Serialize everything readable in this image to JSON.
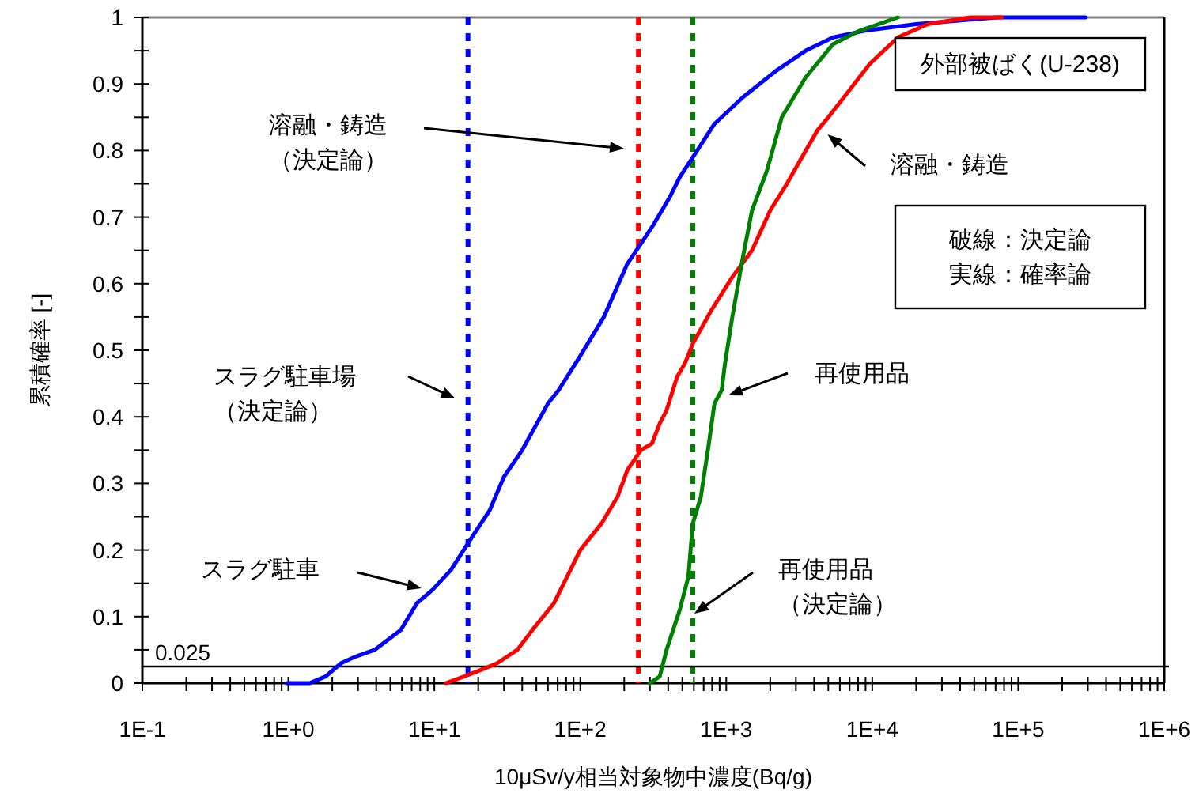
{
  "chart_data": {
    "type": "line",
    "xlabel": "10μSv/y相当対象物中濃度(Bq/g)",
    "ylabel": "累積確率 [-]",
    "log": "x",
    "line_style": "solid",
    "xlim": [
      0.1,
      1000000
    ],
    "ylim": [
      0,
      1
    ],
    "xticks": [
      {
        "value": 0.1,
        "label": "1E-1"
      },
      {
        "value": 0.2,
        "label": null
      },
      {
        "value": 0.3,
        "label": null
      },
      {
        "value": 0.4,
        "label": null
      },
      {
        "value": 0.5,
        "label": null
      },
      {
        "value": 0.6,
        "label": null
      },
      {
        "value": 0.7,
        "label": null
      },
      {
        "value": 0.8,
        "label": null
      },
      {
        "value": 0.9,
        "label": null
      },
      {
        "value": 1,
        "label": "1E+0"
      },
      {
        "value": 2,
        "label": null
      },
      {
        "value": 3,
        "label": null
      },
      {
        "value": 4,
        "label": null
      },
      {
        "value": 5,
        "label": null
      },
      {
        "value": 6,
        "label": null
      },
      {
        "value": 7,
        "label": null
      },
      {
        "value": 8,
        "label": null
      },
      {
        "value": 9,
        "label": null
      },
      {
        "value": 10,
        "label": "1E+1"
      },
      {
        "value": 20,
        "label": null
      },
      {
        "value": 30,
        "label": null
      },
      {
        "value": 40,
        "label": null
      },
      {
        "value": 50,
        "label": null
      },
      {
        "value": 60,
        "label": null
      },
      {
        "value": 70,
        "label": null
      },
      {
        "value": 80,
        "label": null
      },
      {
        "value": 90,
        "label": null
      },
      {
        "value": 100,
        "label": "1E+2"
      },
      {
        "value": 200,
        "label": null
      },
      {
        "value": 300,
        "label": null
      },
      {
        "value": 400,
        "label": null
      },
      {
        "value": 500,
        "label": null
      },
      {
        "value": 600,
        "label": null
      },
      {
        "value": 700,
        "label": null
      },
      {
        "value": 800,
        "label": null
      },
      {
        "value": 900,
        "label": null
      },
      {
        "value": 1000,
        "label": "1E+3"
      },
      {
        "value": 2000,
        "label": null
      },
      {
        "value": 3000,
        "label": null
      },
      {
        "value": 4000,
        "label": null
      },
      {
        "value": 5000,
        "label": null
      },
      {
        "value": 6000,
        "label": null
      },
      {
        "value": 7000,
        "label": null
      },
      {
        "value": 8000,
        "label": null
      },
      {
        "value": 9000,
        "label": null
      },
      {
        "value": 10000,
        "label": "1E+4"
      },
      {
        "value": 20000,
        "label": null
      },
      {
        "value": 30000,
        "label": null
      },
      {
        "value": 40000,
        "label": null
      },
      {
        "value": 50000,
        "label": null
      },
      {
        "value": 60000,
        "label": null
      },
      {
        "value": 70000,
        "label": null
      },
      {
        "value": 80000,
        "label": null
      },
      {
        "value": 90000,
        "label": null
      },
      {
        "value": 100000,
        "label": "1E+5"
      },
      {
        "value": 200000,
        "label": null
      },
      {
        "value": 300000,
        "label": null
      },
      {
        "value": 400000,
        "label": null
      },
      {
        "value": 500000,
        "label": null
      },
      {
        "value": 600000,
        "label": null
      },
      {
        "value": 700000,
        "label": null
      },
      {
        "value": 800000,
        "label": null
      },
      {
        "value": 900000,
        "label": null
      },
      {
        "value": 1000000,
        "label": "1E+6"
      }
    ],
    "yticks": [
      0,
      {
        "value": 0.05,
        "label": null
      },
      0.1,
      {
        "value": 0.15,
        "label": null
      },
      0.2,
      {
        "value": 0.25,
        "label": null
      },
      0.3,
      {
        "value": 0.35,
        "label": null
      },
      0.4,
      {
        "value": 0.45,
        "label": null
      },
      0.5,
      {
        "value": 0.55,
        "label": null
      },
      0.6,
      {
        "value": 0.65,
        "label": null
      },
      0.7,
      {
        "value": 0.75,
        "label": null
      },
      0.8,
      {
        "value": 0.85,
        "label": null
      },
      0.9,
      {
        "value": 0.95,
        "label": null
      },
      1
    ],
    "series": [
      {
        "color": "#0000ff",
        "x": [
          0.98,
          1.4,
          1.8,
          2.3,
          2.9,
          3.9,
          5.9,
          7.6,
          9.7,
          13,
          17,
          24,
          30,
          40,
          60,
          71,
          99,
          145,
          210,
          260,
          320,
          410,
          480,
          590,
          830,
          1300,
          2200,
          3500,
          5400,
          8900,
          20000,
          71000,
          290000
        ],
        "values": [
          0,
          0,
          0.01,
          0.03,
          0.04,
          0.05,
          0.08,
          0.12,
          0.14,
          0.17,
          0.21,
          0.26,
          0.31,
          0.35,
          0.42,
          0.44,
          0.49,
          0.55,
          0.63,
          0.66,
          0.69,
          0.73,
          0.76,
          0.79,
          0.84,
          0.88,
          0.92,
          0.95,
          0.97,
          0.98,
          0.99,
          1.0,
          1.0
        ]
      },
      {
        "color": "#ff0000",
        "x": [
          12,
          16,
          21,
          27,
          37,
          47,
          66,
          100,
          140,
          180,
          210,
          260,
          310,
          350,
          390,
          460,
          520,
          590,
          790,
          1100,
          1500,
          2000,
          2600,
          3300,
          4200,
          5000,
          6400,
          9600,
          15000,
          24000,
          47000,
          77000
        ],
        "values": [
          0,
          0.01,
          0.02,
          0.03,
          0.05,
          0.08,
          0.12,
          0.2,
          0.24,
          0.28,
          0.32,
          0.35,
          0.36,
          0.39,
          0.41,
          0.46,
          0.48,
          0.51,
          0.56,
          0.61,
          0.65,
          0.71,
          0.75,
          0.79,
          0.83,
          0.85,
          0.88,
          0.93,
          0.97,
          0.99,
          1.0,
          1.0
        ]
      },
      {
        "color": "#008000",
        "x": [
          300,
          350,
          390,
          480,
          550,
          590,
          670,
          760,
          830,
          930,
          980,
          1100,
          1300,
          1500,
          1900,
          2400,
          3500,
          5400,
          8200,
          15000
        ],
        "values": [
          0,
          0.01,
          0.05,
          0.11,
          0.16,
          0.24,
          0.28,
          0.36,
          0.42,
          0.44,
          0.48,
          0.55,
          0.64,
          0.71,
          0.77,
          0.85,
          0.91,
          0.96,
          0.98,
          1.0
        ]
      }
    ],
    "ref_lines": [
      {
        "axis": "x",
        "value": 17,
        "color": "#0000ff",
        "line_style": "dashed"
      },
      {
        "axis": "x",
        "value": 250,
        "color": "#ff0000",
        "line_style": "dashed"
      },
      {
        "axis": "x",
        "value": 590,
        "color": "#008000",
        "line_style": "dashed"
      },
      {
        "axis": "y",
        "value": 0.025,
        "label": "0.025",
        "color": "#000000",
        "line_style": "solid"
      }
    ],
    "annotations": [
      "溶融・鋳造（決定論）",
      "スラグ駐車場（決定論）",
      "スラグ駐車",
      "溶融・鋳造",
      "再使用品",
      "再使用品（決定論）",
      "外部被ばく(U-238)",
      "破線：決定論",
      "実線：確率論"
    ]
  }
}
